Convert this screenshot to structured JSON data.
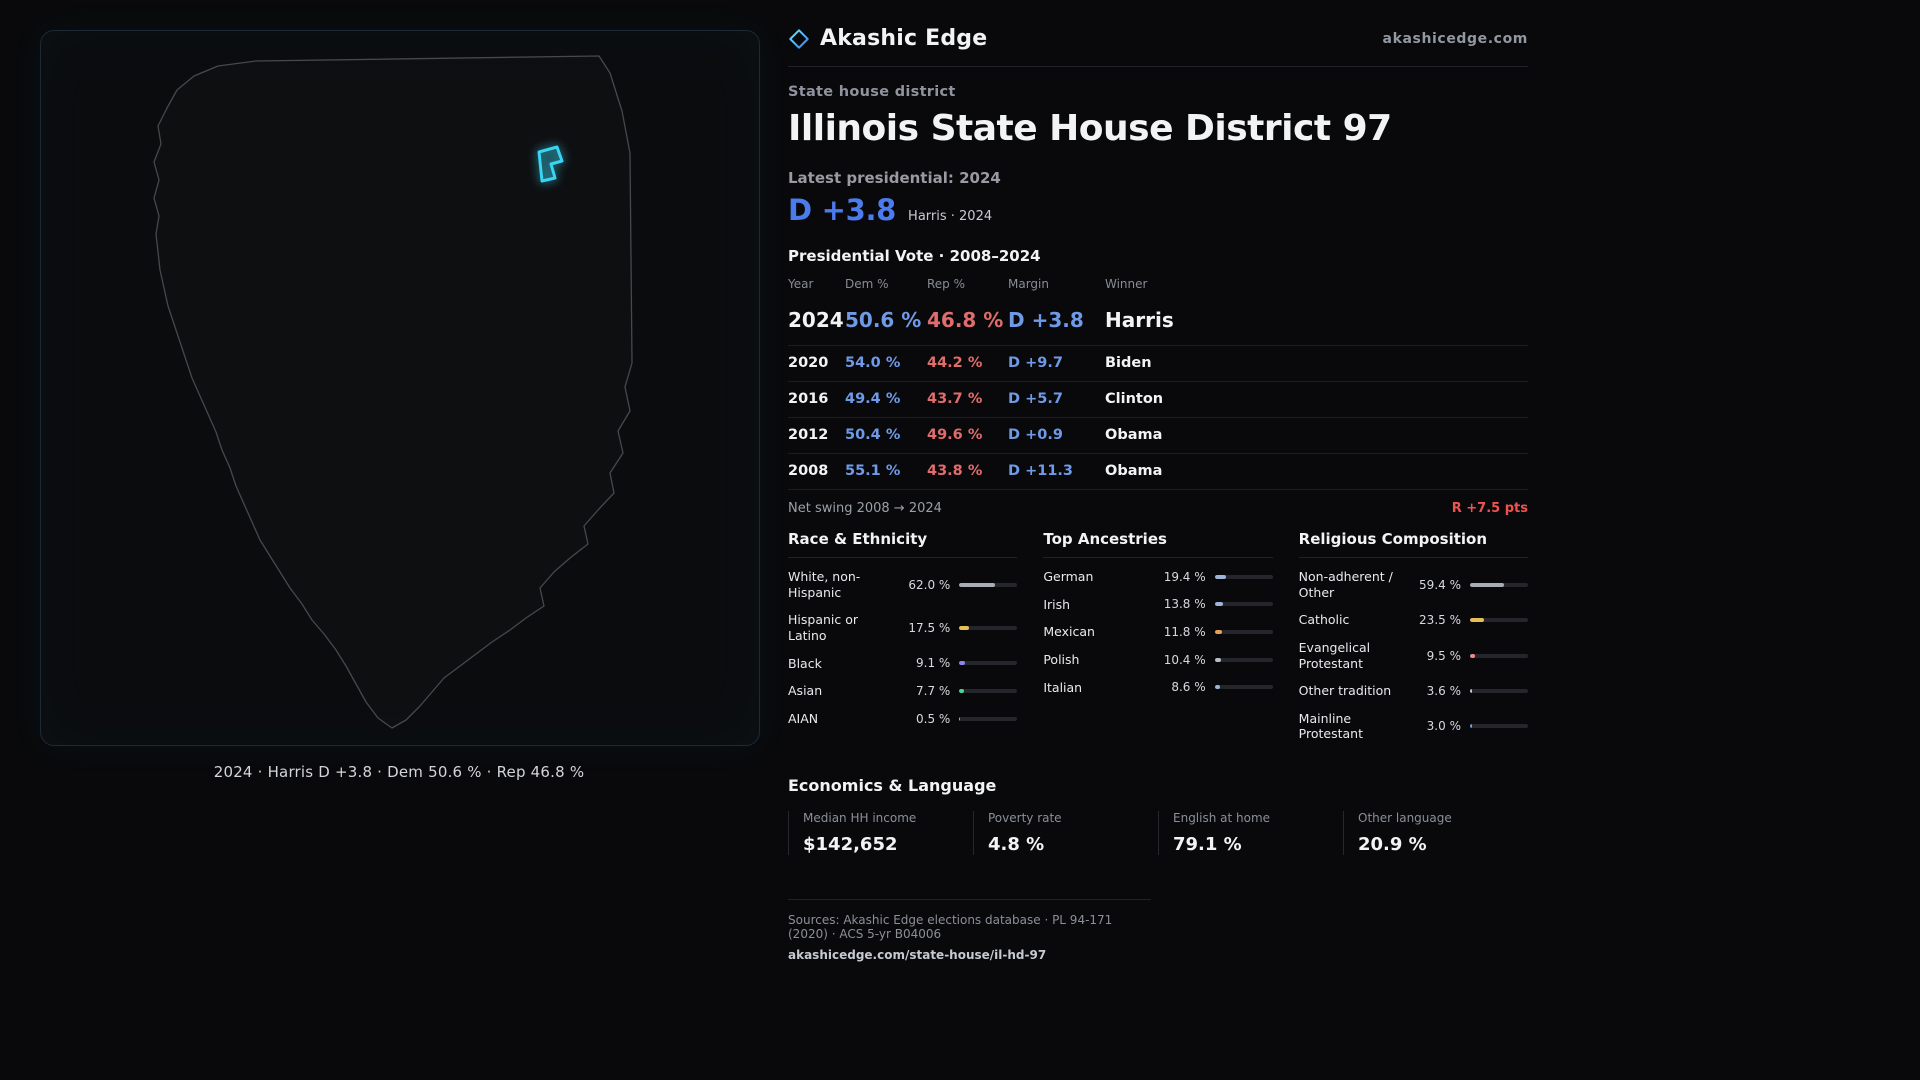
{
  "brand": {
    "name": "Akashic Edge",
    "site": "akashicedge.com"
  },
  "page": {
    "kicker": "State house district",
    "title": "Illinois State House District 97"
  },
  "latest": {
    "label": "Latest presidential: 2024",
    "margin": "D +3.8",
    "detail": "Harris · 2024"
  },
  "map": {
    "caption": "2024 · Harris D +3.8 · Dem 50.6 % · Rep 46.8 %",
    "district_color": "#38d4f0"
  },
  "vote_table": {
    "title": "Presidential Vote · 2008–2024",
    "columns": {
      "year": "Year",
      "dem": "Dem %",
      "rep": "Rep %",
      "margin": "Margin",
      "winner": "Winner"
    },
    "rows": [
      {
        "year": "2024",
        "dem": "50.6 %",
        "rep": "46.8 %",
        "margin": "D +3.8",
        "winner": "Harris"
      },
      {
        "year": "2020",
        "dem": "54.0 %",
        "rep": "44.2 %",
        "margin": "D +9.7",
        "winner": "Biden"
      },
      {
        "year": "2016",
        "dem": "49.4 %",
        "rep": "43.7 %",
        "margin": "D +5.7",
        "winner": "Clinton"
      },
      {
        "year": "2012",
        "dem": "50.4 %",
        "rep": "49.6 %",
        "margin": "D +0.9",
        "winner": "Obama"
      },
      {
        "year": "2008",
        "dem": "55.1 %",
        "rep": "43.8 %",
        "margin": "D +11.3",
        "winner": "Obama"
      }
    ]
  },
  "swing": {
    "label": "Net swing 2008 → 2024",
    "value": "R +7.5 pts"
  },
  "demographics": [
    {
      "title": "Race & Ethnicity",
      "items": [
        {
          "label": "White, non-Hispanic",
          "value": "62.0 %",
          "pct": 62.0,
          "color": "#a7adb5"
        },
        {
          "label": "Hispanic or Latino",
          "value": "17.5 %",
          "pct": 17.5,
          "color": "#e6c054"
        },
        {
          "label": "Black",
          "value": "9.1 %",
          "pct": 9.1,
          "color": "#8d85f2"
        },
        {
          "label": "Asian",
          "value": "7.7 %",
          "pct": 7.7,
          "color": "#41d99c"
        },
        {
          "label": "AIAN",
          "value": "0.5 %",
          "pct": 0.5,
          "color": "#a7adb5"
        }
      ]
    },
    {
      "title": "Top Ancestries",
      "items": [
        {
          "label": "German",
          "value": "19.4 %",
          "pct": 19.4,
          "color": "#9fb4d8"
        },
        {
          "label": "Irish",
          "value": "13.8 %",
          "pct": 13.8,
          "color": "#9fb4d8"
        },
        {
          "label": "Mexican",
          "value": "11.8 %",
          "pct": 11.8,
          "color": "#e6a254"
        },
        {
          "label": "Polish",
          "value": "10.4 %",
          "pct": 10.4,
          "color": "#b9bfc8"
        },
        {
          "label": "Italian",
          "value": "8.6 %",
          "pct": 8.6,
          "color": "#9fb4d8"
        }
      ]
    },
    {
      "title": "Religious Composition",
      "items": [
        {
          "label": "Non-adherent / Other",
          "value": "59.4 %",
          "pct": 59.4,
          "color": "#a7adb5"
        },
        {
          "label": "Catholic",
          "value": "23.5 %",
          "pct": 23.5,
          "color": "#e6c054"
        },
        {
          "label": "Evangelical Protestant",
          "value": "9.5 %",
          "pct": 9.5,
          "color": "#ef8b8b"
        },
        {
          "label": "Other tradition",
          "value": "3.6 %",
          "pct": 3.6,
          "color": "#c3c8cf"
        },
        {
          "label": "Mainline Protestant",
          "value": "3.0 %",
          "pct": 3.0,
          "color": "#6f9ae8"
        }
      ]
    }
  ],
  "economics": {
    "title": "Economics & Language",
    "stats": [
      {
        "label": "Median HH income",
        "value": "$142,652"
      },
      {
        "label": "Poverty rate",
        "value": "4.8 %"
      },
      {
        "label": "English at home",
        "value": "79.1 %"
      },
      {
        "label": "Other language",
        "value": "20.9 %"
      }
    ]
  },
  "footer": {
    "sources": "Sources: Akashic Edge elections database · PL 94-171 (2020) · ACS 5-yr B04006",
    "link": "akashicedge.com/state-house/il-hd-97"
  },
  "chart_data": [
    {
      "type": "table",
      "title": "Presidential Vote · 2008–2024",
      "columns": [
        "Year",
        "Dem %",
        "Rep %",
        "Margin",
        "Winner"
      ],
      "rows": [
        [
          "2024",
          50.6,
          46.8,
          "D +3.8",
          "Harris"
        ],
        [
          "2020",
          54.0,
          44.2,
          "D +9.7",
          "Biden"
        ],
        [
          "2016",
          49.4,
          43.7,
          "D +5.7",
          "Clinton"
        ],
        [
          "2012",
          50.4,
          49.6,
          "D +0.9",
          "Obama"
        ],
        [
          "2008",
          55.1,
          43.8,
          "D +11.3",
          "Obama"
        ]
      ],
      "annotations": [
        "Net swing 2008 → 2024: R +7.5 pts"
      ]
    },
    {
      "type": "bar",
      "title": "Race & Ethnicity",
      "categories": [
        "White, non-Hispanic",
        "Hispanic or Latino",
        "Black",
        "Asian",
        "AIAN"
      ],
      "values": [
        62.0,
        17.5,
        9.1,
        7.7,
        0.5
      ],
      "unit": "%",
      "xlim": [
        0,
        100
      ],
      "orientation": "horizontal"
    },
    {
      "type": "bar",
      "title": "Top Ancestries",
      "categories": [
        "German",
        "Irish",
        "Mexican",
        "Polish",
        "Italian"
      ],
      "values": [
        19.4,
        13.8,
        11.8,
        10.4,
        8.6
      ],
      "unit": "%",
      "xlim": [
        0,
        100
      ],
      "orientation": "horizontal"
    },
    {
      "type": "bar",
      "title": "Religious Composition",
      "categories": [
        "Non-adherent / Other",
        "Catholic",
        "Evangelical Protestant",
        "Other tradition",
        "Mainline Protestant"
      ],
      "values": [
        59.4,
        23.5,
        9.5,
        3.6,
        3.0
      ],
      "unit": "%",
      "xlim": [
        0,
        100
      ],
      "orientation": "horizontal"
    }
  ]
}
